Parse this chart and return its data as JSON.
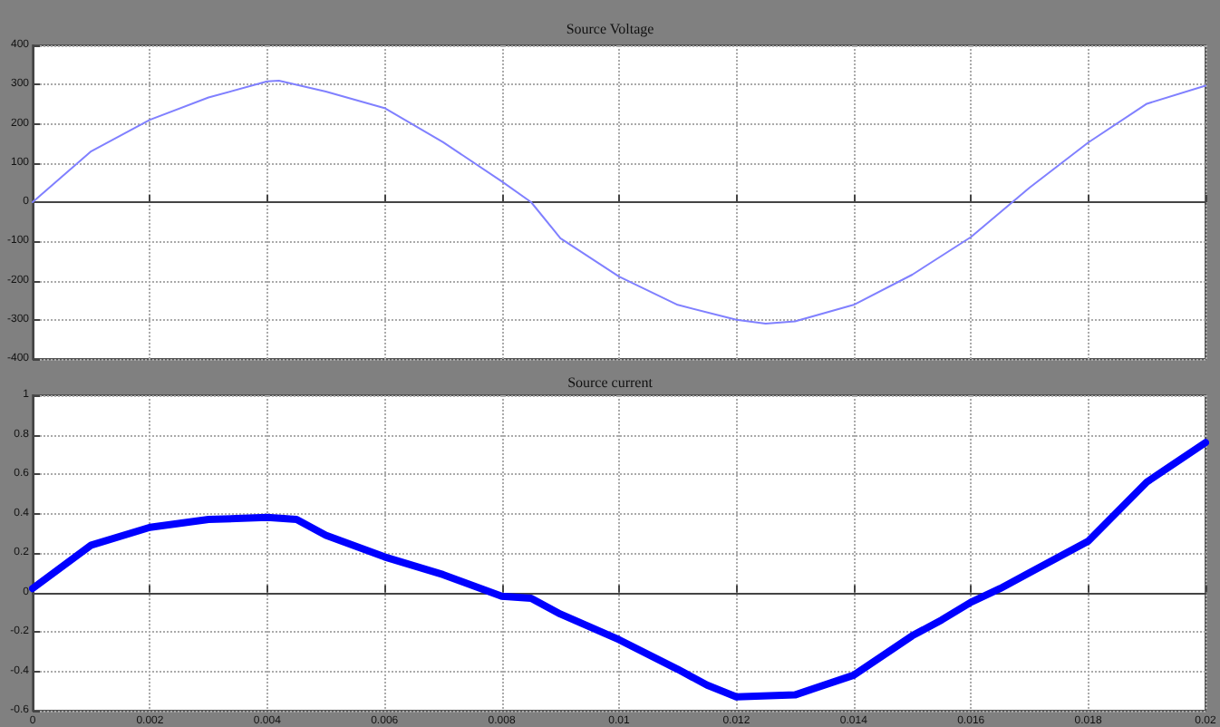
{
  "chart_data": [
    {
      "type": "line",
      "title": "Source Voltage",
      "x": [
        0,
        0.001,
        0.002,
        0.003,
        0.004,
        0.0042,
        0.005,
        0.006,
        0.007,
        0.008,
        0.0085,
        0.009,
        0.01,
        0.011,
        0.012,
        0.0125,
        0.013,
        0.014,
        0.015,
        0.016,
        0.017,
        0.018,
        0.019,
        0.02
      ],
      "series": [
        {
          "color": "#8080ff",
          "values": [
            0,
            130,
            210,
            267,
            308,
            310,
            282,
            240,
            153,
            53,
            0,
            -92,
            -190,
            -262,
            -300,
            -310,
            -304,
            -262,
            -185,
            -89,
            37,
            152,
            251,
            297
          ]
        }
      ],
      "xlim": [
        0,
        0.02
      ],
      "ylim": [
        -400,
        400
      ],
      "yticks": [
        -400,
        -300,
        -200,
        -100,
        0,
        100,
        200,
        300,
        400
      ],
      "xticks": [
        {
          "value": 0,
          "label": null
        },
        {
          "value": 0.002,
          "label": null
        },
        {
          "value": 0.004,
          "label": null
        },
        {
          "value": 0.006,
          "label": null
        },
        {
          "value": 0.008,
          "label": null
        },
        {
          "value": 0.01,
          "label": null
        },
        {
          "value": 0.012,
          "label": null
        },
        {
          "value": 0.014,
          "label": null
        },
        {
          "value": 0.016,
          "label": null
        },
        {
          "value": 0.018,
          "label": null
        },
        {
          "value": 0.02,
          "label": null
        }
      ],
      "tick_labels": "y",
      "grid": true,
      "line_style": "solid",
      "marker": "none"
    },
    {
      "type": "line",
      "title": "Source current",
      "x": [
        0,
        0.001,
        0.002,
        0.003,
        0.004,
        0.0045,
        0.005,
        0.006,
        0.007,
        0.008,
        0.0085,
        0.009,
        0.01,
        0.011,
        0.0115,
        0.012,
        0.013,
        0.014,
        0.015,
        0.0155,
        0.016,
        0.0165,
        0.017,
        0.018,
        0.019,
        0.02
      ],
      "series": [
        {
          "color": "#0000ff",
          "values": [
            0.02,
            0.24,
            0.33,
            0.37,
            0.38,
            0.37,
            0.29,
            0.18,
            0.09,
            -0.02,
            -0.03,
            -0.11,
            -0.24,
            -0.39,
            -0.47,
            -0.53,
            -0.52,
            -0.42,
            -0.22,
            -0.14,
            -0.05,
            0.02,
            0.1,
            0.26,
            0.56,
            0.76
          ]
        }
      ],
      "xlim": [
        0,
        0.02
      ],
      "ylim": [
        -0.6,
        1
      ],
      "yticks": [
        -0.6,
        -0.4,
        -0.2,
        0,
        0.2,
        0.4,
        0.6,
        0.8,
        1
      ],
      "xticks": [
        0,
        0.002,
        0.004,
        0.006,
        0.008,
        0.01,
        0.012,
        0.014,
        0.016,
        0.018,
        0.02
      ],
      "grid": true,
      "line_style": "solid",
      "marker": "none"
    }
  ]
}
